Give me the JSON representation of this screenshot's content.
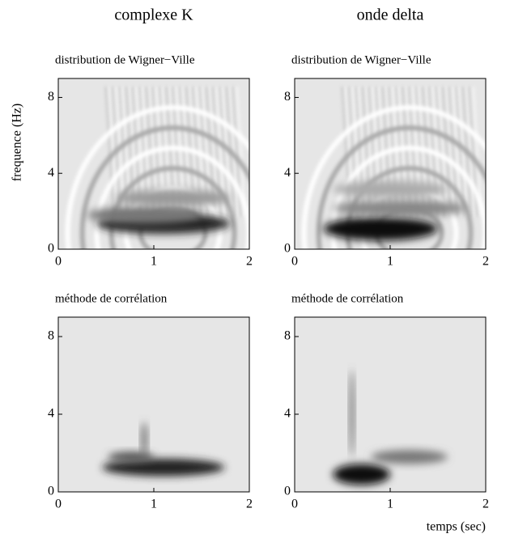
{
  "columns": [
    "complexe K",
    "onde delta"
  ],
  "ylabel": "frequence (Hz)",
  "xlabel": "temps (sec)",
  "chart_data": [
    {
      "type": "heatmap",
      "title": "distribution de Wigner−Ville",
      "xlim": [
        0,
        2
      ],
      "ylim": [
        0,
        9
      ],
      "xticks": [
        0,
        1,
        2
      ],
      "yticks": [
        0,
        4,
        8
      ]
    },
    {
      "type": "heatmap",
      "title": "distribution de Wigner−Ville",
      "xlim": [
        0,
        2
      ],
      "ylim": [
        0,
        9
      ],
      "xticks": [
        0,
        1,
        2
      ],
      "yticks": [
        0,
        4,
        8
      ]
    },
    {
      "type": "heatmap",
      "title": "méthode de corrélation",
      "xlim": [
        0,
        2
      ],
      "ylim": [
        0,
        9
      ],
      "xticks": [
        0,
        1,
        2
      ],
      "yticks": [
        0,
        4,
        8
      ]
    },
    {
      "type": "heatmap",
      "title": "méthode de corrélation",
      "xlim": [
        0,
        2
      ],
      "ylim": [
        0,
        9
      ],
      "xticks": [
        0,
        1,
        2
      ],
      "yticks": [
        0,
        4,
        8
      ]
    }
  ]
}
